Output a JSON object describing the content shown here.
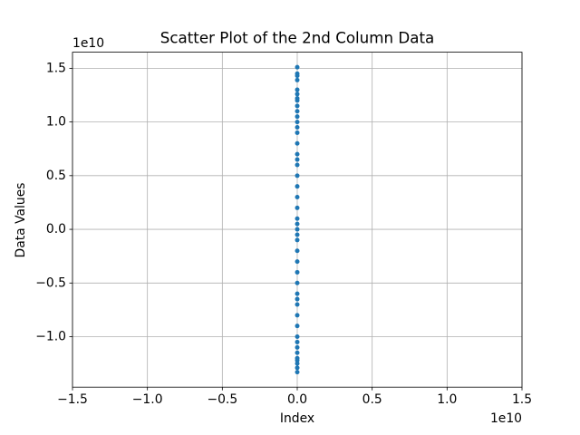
{
  "chart_data": {
    "type": "scatter",
    "title": "Scatter Plot of the 2nd Column Data",
    "x_label": "Index",
    "y_label": "Data Values",
    "x_offset_label": "1e10",
    "y_offset_label": "1e10",
    "color": "#1f77b4",
    "grid": true,
    "xlim": [
      -15000000000.0,
      15000000000.0
    ],
    "ylim": [
      -14700000000.0,
      16500000000.0
    ],
    "xticks": [
      {
        "value": -15000000000.0,
        "label": "−1.5"
      },
      {
        "value": -10000000000.0,
        "label": "−1.0"
      },
      {
        "value": -5000000000.0,
        "label": "−0.5"
      },
      {
        "value": 0,
        "label": "0.0"
      },
      {
        "value": 5000000000.0,
        "label": "0.5"
      },
      {
        "value": 10000000000.0,
        "label": "1.0"
      },
      {
        "value": 15000000000.0,
        "label": "1.5"
      }
    ],
    "yticks": [
      {
        "value": -10000000000.0,
        "label": "−1.0"
      },
      {
        "value": -5000000000.0,
        "label": "−0.5"
      },
      {
        "value": 0,
        "label": "0.0"
      },
      {
        "value": 5000000000.0,
        "label": "0.5"
      },
      {
        "value": 10000000000.0,
        "label": "1.0"
      },
      {
        "value": 15000000000.0,
        "label": "1.5"
      }
    ],
    "x": [
      0,
      1,
      2,
      3,
      4,
      5,
      6,
      7,
      8,
      9,
      10,
      11,
      12,
      13,
      14,
      15,
      16,
      17,
      18,
      19,
      20,
      21,
      22,
      23,
      24,
      25,
      26,
      27,
      28,
      29,
      30,
      31,
      32,
      33,
      34,
      35,
      36,
      37,
      38,
      39,
      40,
      41,
      42,
      43,
      44
    ],
    "values": [
      15100000000.0,
      14500000000.0,
      14300000000.0,
      13900000000.0,
      13000000000.0,
      12600000000.0,
      12200000000.0,
      12000000000.0,
      11000000000.0,
      10000000000.0,
      9000000000.0,
      8000000000.0,
      7000000000.0,
      6000000000.0,
      5000000000.0,
      4000000000.0,
      3000000000.0,
      2000000000.0,
      1000000000.0,
      0,
      -1000000000.0,
      -2000000000.0,
      -3000000000.0,
      -4000000000.0,
      -5000000000.0,
      -6000000000.0,
      -7000000000.0,
      -8000000000.0,
      -9000000000.0,
      -10000000000.0,
      -11000000000.0,
      -11500000000.0,
      -12000000000.0,
      -12200000000.0,
      -12500000000.0,
      -12900000000.0,
      -13300000000.0,
      500000000.0,
      -500000000.0,
      6500000000.0,
      -6500000000.0,
      10500000000.0,
      -10500000000.0,
      11500000000.0,
      9500000000.0
    ]
  }
}
